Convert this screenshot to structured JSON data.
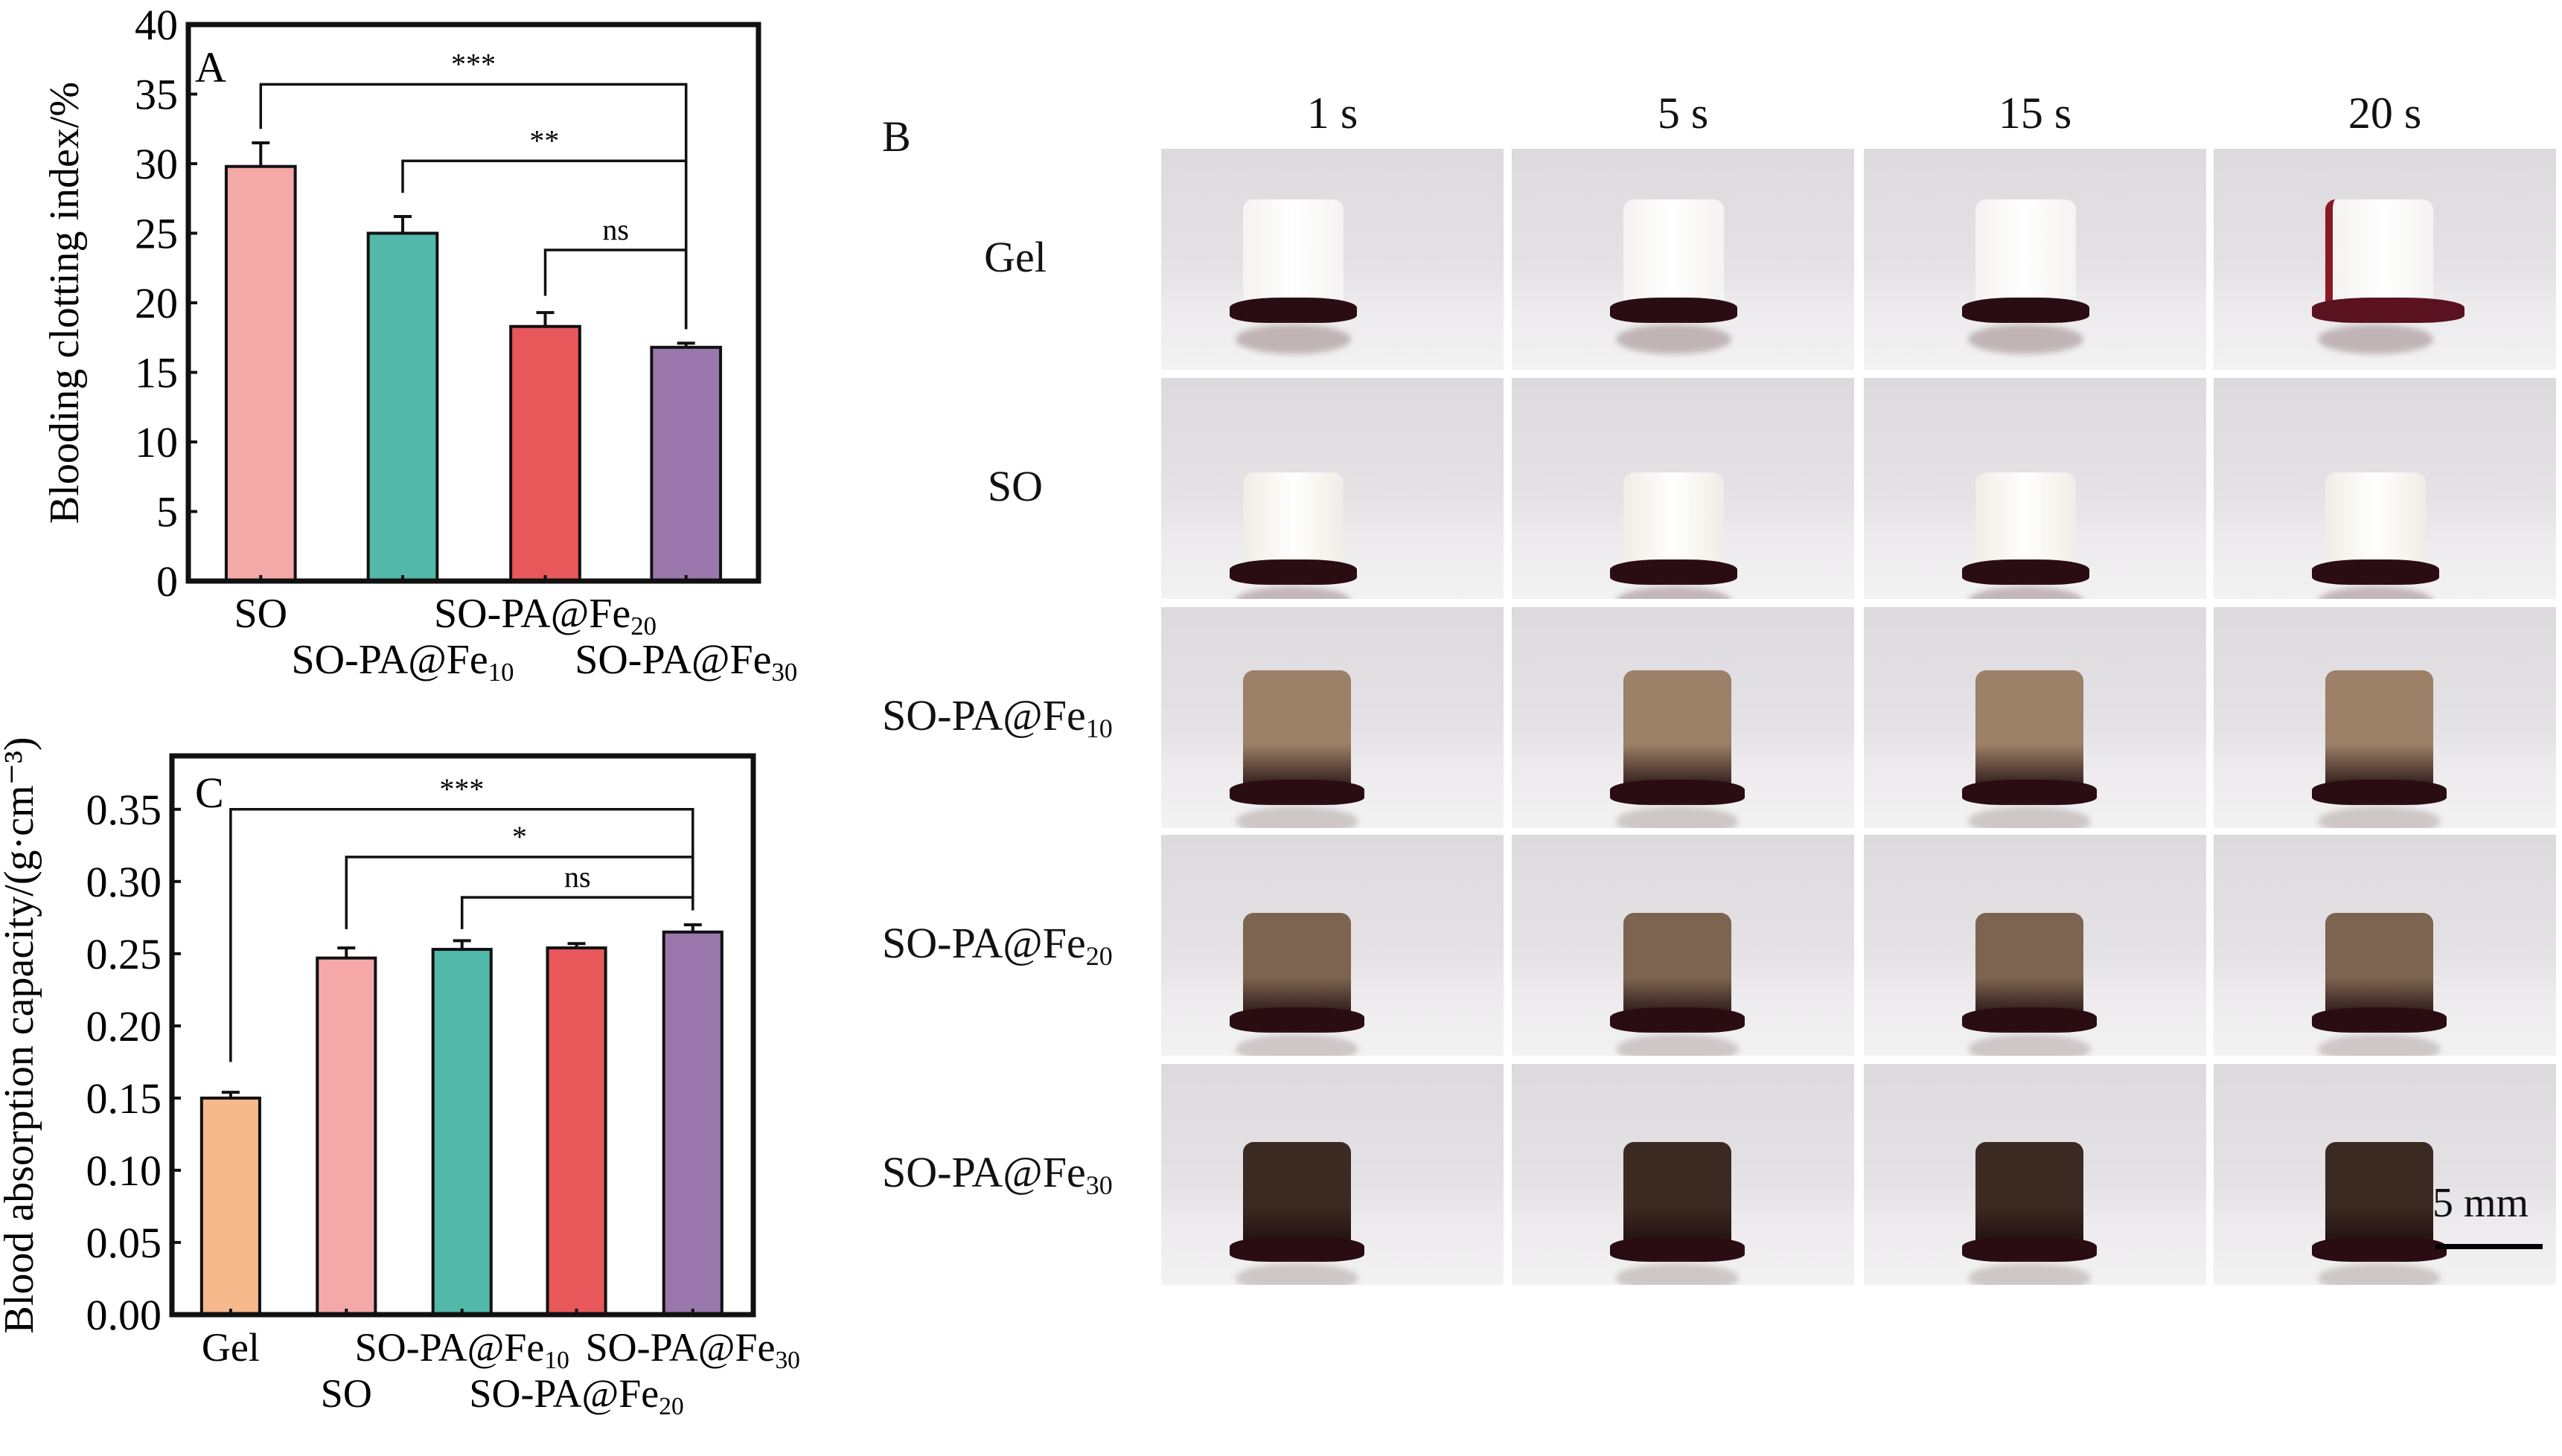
{
  "chart_data": [
    {
      "type": "bar",
      "panel_label": "A",
      "title": "",
      "ylabel": "Blooding clotting index/%",
      "xlabel": "",
      "ylim": [
        0,
        40
      ],
      "yticks": [
        0,
        5,
        10,
        15,
        20,
        25,
        30,
        35,
        40
      ],
      "categories": [
        {
          "base": "SO",
          "sub": ""
        },
        {
          "base": "SO-PA@Fe",
          "sub": "10"
        },
        {
          "base": "SO-PA@Fe",
          "sub": "20"
        },
        {
          "base": "SO-PA@Fe",
          "sub": "30"
        }
      ],
      "values": [
        29.8,
        25.0,
        18.3,
        16.8
      ],
      "errors": [
        1.7,
        1.2,
        1.0,
        0.3
      ],
      "colors": [
        "#f5a8a8",
        "#52b8a9",
        "#e8585a",
        "#9a77ad"
      ],
      "significance": [
        {
          "from": 0,
          "to": 3,
          "label": "***",
          "level": 35.7,
          "from_drop": 32.5,
          "to_drop": 18.1
        },
        {
          "from": 1,
          "to": 3,
          "label": "**",
          "level": 30.2,
          "from_drop": 27.9,
          "to_drop": 18.1
        },
        {
          "from": 2,
          "to": 3,
          "label": "ns",
          "level": 23.8,
          "from_drop": 20.5,
          "to_drop": 18.1
        }
      ]
    },
    {
      "type": "bar",
      "panel_label": "C",
      "title": "",
      "ylabel": "Blood absorption capacity/(g·cm⁻³)",
      "xlabel": "",
      "ylim": [
        0,
        0.387
      ],
      "yticks": [
        "0.00",
        "0.05",
        "0.10",
        "0.15",
        "0.20",
        "0.25",
        "0.30",
        "0.35"
      ],
      "categories": [
        {
          "base": "Gel",
          "sub": ""
        },
        {
          "base": "SO",
          "sub": ""
        },
        {
          "base": "SO-PA@Fe",
          "sub": "10"
        },
        {
          "base": "SO-PA@Fe",
          "sub": "20"
        },
        {
          "base": "SO-PA@Fe",
          "sub": "30"
        }
      ],
      "values": [
        0.15,
        0.247,
        0.253,
        0.254,
        0.265
      ],
      "errors": [
        0.004,
        0.007,
        0.006,
        0.003,
        0.005
      ],
      "colors": [
        "#f5b98c",
        "#f5a8a8",
        "#52b8a9",
        "#e8585a",
        "#9a77ad"
      ],
      "significance": [
        {
          "from": 0,
          "to": 4,
          "label": "***",
          "level": 0.35,
          "from_drop": 0.175,
          "to_drop": 0.289
        },
        {
          "from": 1,
          "to": 4,
          "label": "*",
          "level": 0.317,
          "from_drop": 0.267,
          "to_drop": 0.289
        },
        {
          "from": 2,
          "to": 4,
          "label": "ns",
          "level": 0.289,
          "from_drop": 0.267,
          "to_drop": 0.28
        }
      ]
    }
  ],
  "panel_b": {
    "label": "B",
    "time_points": [
      "1 s",
      "5 s",
      "15 s",
      "20 s"
    ],
    "rows": [
      {
        "base": "Gel",
        "sub": "",
        "sponge_color": "#f4f3f1",
        "blood_spill": [
          false,
          false,
          false,
          true
        ]
      },
      {
        "base": "SO",
        "sub": "",
        "sponge_color": "#efede4",
        "blood_spill": [
          false,
          false,
          false,
          false
        ]
      },
      {
        "base": "SO-PA@Fe",
        "sub": "10",
        "sponge_color": "#9c8068",
        "blood_spill": [
          false,
          false,
          false,
          false
        ]
      },
      {
        "base": "SO-PA@Fe",
        "sub": "20",
        "sponge_color": "#7d6450",
        "blood_spill": [
          false,
          false,
          false,
          false
        ]
      },
      {
        "base": "SO-PA@Fe",
        "sub": "30",
        "sponge_color": "#3b2a22",
        "blood_spill": [
          false,
          false,
          false,
          false
        ]
      }
    ],
    "scale_bar": "5 mm"
  }
}
